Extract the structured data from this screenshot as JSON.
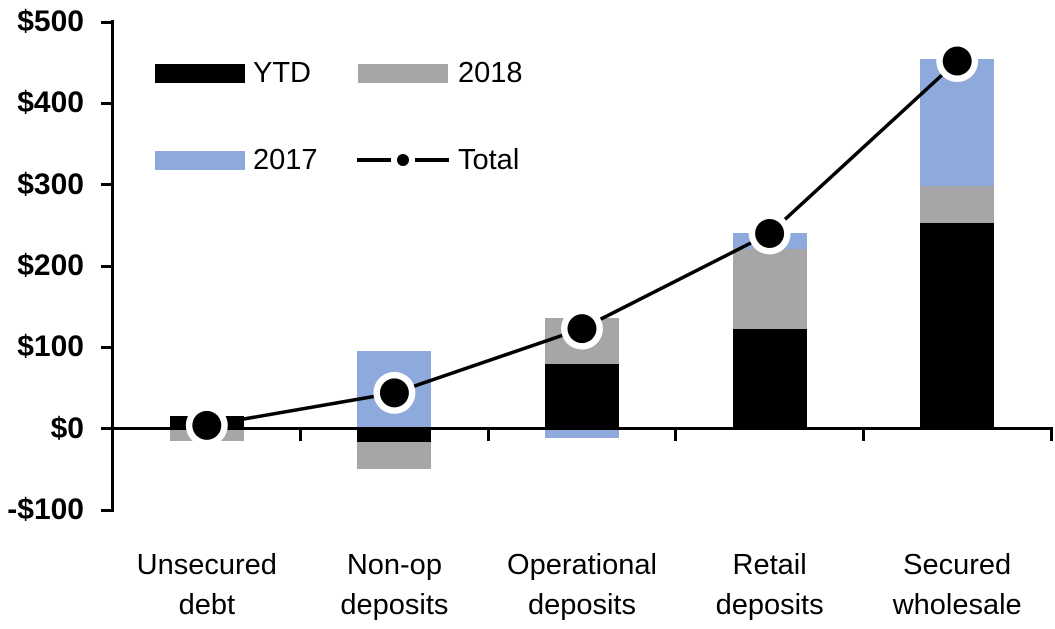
{
  "chart_data": {
    "type": "bar",
    "subtype": "stacked-column-with-line-overlay",
    "title": "",
    "xlabel": "",
    "ylabel": "",
    "grid": "off",
    "categories": [
      "Unsecured debt",
      "Non-op deposits",
      "Operational deposits",
      "Retail deposits",
      "Secured wholesale"
    ],
    "series": [
      {
        "name": "YTD",
        "type": "bar",
        "color": "#000000",
        "values": [
          15,
          -17,
          80,
          123,
          253
        ]
      },
      {
        "name": "2018",
        "type": "bar",
        "color": "#a6a6a6",
        "values": [
          -15,
          -33,
          56,
          98,
          45
        ]
      },
      {
        "name": "2017",
        "type": "bar",
        "color": "#8ea9db",
        "values": [
          0,
          96,
          -12,
          20,
          157
        ]
      },
      {
        "name": "Total",
        "type": "line",
        "color": "#000000",
        "marker": "black-dot-with-white-ring",
        "values": [
          4,
          44,
          123,
          240,
          452
        ]
      }
    ],
    "y_axis": {
      "min": -100,
      "max": 500,
      "tick_step": 100,
      "tick_values": [
        500,
        400,
        300,
        200,
        100,
        0,
        -100
      ],
      "tick_labels": [
        "$500",
        "$400",
        "$300",
        "$200",
        "$100",
        "$0",
        "-$100"
      ]
    },
    "legend": {
      "position": "top-left-inside",
      "rows": [
        [
          "YTD",
          "2018"
        ],
        [
          "2017",
          "Total"
        ]
      ]
    }
  }
}
